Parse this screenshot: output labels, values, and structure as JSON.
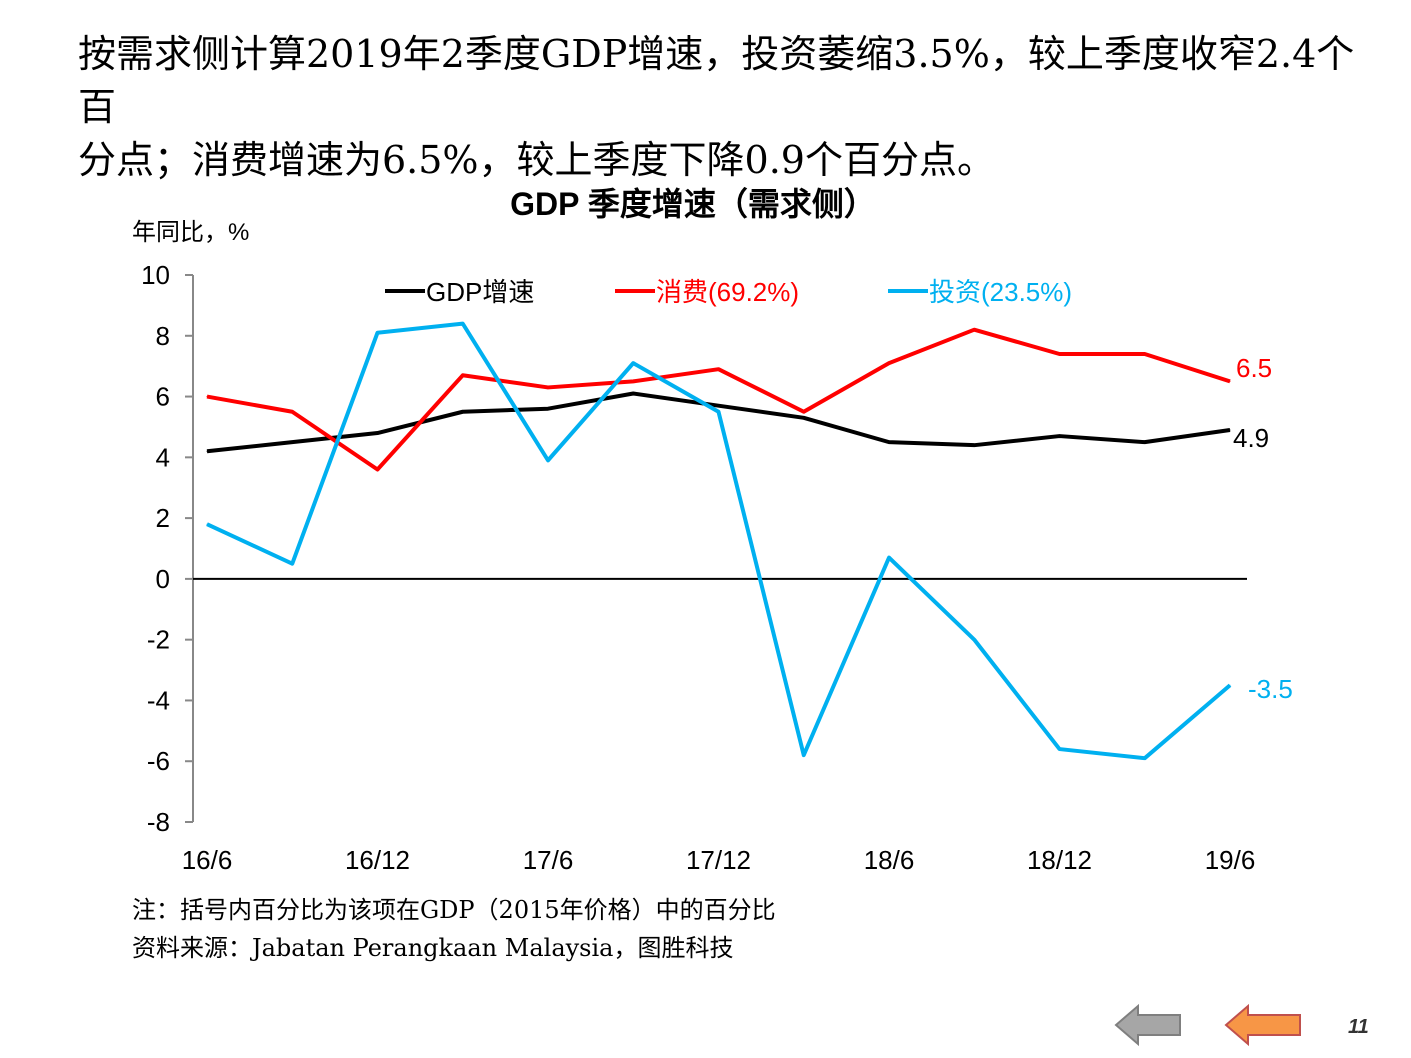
{
  "headline": {
    "line1": "按需求侧计算2019年2季度GDP增速，投资萎缩3.5%，较上季度收窄2.4个百",
    "line2": "分点；消费增速为6.5%，较上季度下降0.9个百分点。"
  },
  "chart_data": {
    "type": "line",
    "title": "GDP 季度增速（需求侧）",
    "ylabel": "年同比，%",
    "xlabel": "",
    "ylim": [
      -8,
      10
    ],
    "yticks": [
      10,
      8,
      6,
      4,
      2,
      0,
      -2,
      -4,
      -6,
      -8
    ],
    "grid": false,
    "legend_position": "top",
    "categories": [
      "16/6",
      "16/9",
      "16/12",
      "17/3",
      "17/6",
      "17/9",
      "17/12",
      "18/3",
      "18/6",
      "18/9",
      "18/12",
      "19/3",
      "19/6"
    ],
    "tick_labels": [
      "16/6",
      "16/12",
      "17/6",
      "17/12",
      "18/6",
      "18/12",
      "19/6"
    ],
    "series": [
      {
        "name": "GDP增速",
        "color": "#000000",
        "values": [
          4.2,
          4.5,
          4.8,
          5.5,
          5.6,
          6.1,
          5.7,
          5.3,
          4.5,
          4.4,
          4.7,
          4.5,
          4.9
        ],
        "end_label": "4.9"
      },
      {
        "name": "消费(69.2%)",
        "color": "#ff0000",
        "values": [
          6.0,
          5.5,
          3.6,
          6.7,
          6.3,
          6.5,
          6.9,
          5.5,
          7.1,
          8.2,
          7.4,
          7.4,
          6.5
        ],
        "end_label": "6.5"
      },
      {
        "name": "投资(23.5%)",
        "color": "#00b0f0",
        "values": [
          1.8,
          0.5,
          8.1,
          8.4,
          3.9,
          7.1,
          5.5,
          -5.8,
          0.7,
          -2.0,
          -5.6,
          -5.9,
          -3.5
        ],
        "end_label": "-3.5"
      }
    ]
  },
  "notes": {
    "note1": "注：括号内百分比为该项在GDP（2015年价格）中的百分比",
    "source": "资料来源：Jabatan Perangkaan Malaysia，图胜科技"
  },
  "nav": {
    "page_number": "11",
    "back_color": "#a6a6a6",
    "forward_color": "#f79646"
  }
}
